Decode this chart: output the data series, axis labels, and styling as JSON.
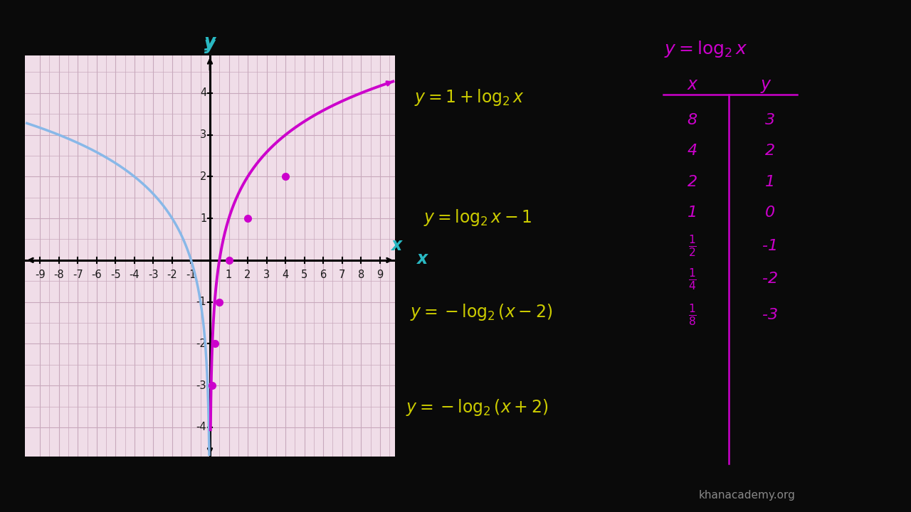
{
  "bg_color": "#0a0a0a",
  "graph_bg_color": "#f0dde8",
  "graph_grid_color": "#c8a8bc",
  "graph_xlim": [
    -9.8,
    9.8
  ],
  "graph_ylim": [
    -4.7,
    4.9
  ],
  "graph_xticks": [
    -9,
    -8,
    -7,
    -6,
    -5,
    -4,
    -3,
    -2,
    -1,
    1,
    2,
    3,
    4,
    5,
    6,
    7,
    8,
    9
  ],
  "graph_yticks": [
    -4,
    -3,
    -2,
    -1,
    1,
    2,
    3,
    4
  ],
  "tick_label_color": "#1a1a1a",
  "tick_fontsize": 10.5,
  "curve_magenta_color": "#cc00cc",
  "curve_blue_color": "#88b8e8",
  "axis_label_color": "#29b8c2",
  "annotation_color": "#cccc00",
  "annotation_color2": "#cc00cc",
  "dot_points_magenta": [
    [
      1.0,
      0.0
    ],
    [
      2.0,
      1.0
    ],
    [
      4.0,
      2.0
    ]
  ],
  "dot_points_magenta_extra": [
    [
      0.5,
      -1.0
    ],
    [
      0.25,
      -2.0
    ],
    [
      0.125,
      -3.0
    ]
  ]
}
